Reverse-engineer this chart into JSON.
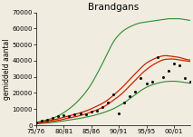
{
  "title": "Brandgans",
  "ylabel": "gemiddeld aantal",
  "xlim": [
    0,
    28
  ],
  "ylim": [
    0,
    70000
  ],
  "x_tick_labels": [
    "75/76",
    "80/81",
    "85/86",
    "90/91",
    "95/95",
    "00/01"
  ],
  "x_tick_positions": [
    0,
    5,
    10,
    15,
    20,
    25
  ],
  "yticks": [
    0,
    10000,
    20000,
    30000,
    40000,
    50000,
    60000,
    70000
  ],
  "scatter_x": [
    0,
    1,
    2,
    3,
    4,
    5,
    6,
    7,
    8,
    9,
    10,
    11,
    12,
    13,
    14,
    15,
    16,
    17,
    18,
    19,
    20,
    21,
    22,
    23,
    24,
    25,
    26,
    27,
    28
  ],
  "scatter_y": [
    1500,
    3000,
    3500,
    4500,
    5500,
    6000,
    5500,
    7000,
    7500,
    6500,
    8500,
    9000,
    11000,
    14000,
    19000,
    7500,
    14000,
    18000,
    21000,
    29000,
    26000,
    27000,
    42000,
    30000,
    34000,
    38000,
    37000,
    29000,
    27000
  ],
  "red_curve1": [
    1200,
    1600,
    2000,
    2500,
    3000,
    3800,
    4500,
    5200,
    6000,
    7000,
    8200,
    9500,
    11000,
    13000,
    15500,
    18000,
    21000,
    24500,
    28000,
    31500,
    34500,
    37000,
    39000,
    40500,
    41000,
    41000,
    40500,
    40000,
    39500
  ],
  "red_curve2": [
    1600,
    2100,
    2700,
    3300,
    4000,
    4900,
    5800,
    6700,
    7700,
    8800,
    10200,
    11800,
    13500,
    15700,
    18500,
    21500,
    24800,
    28500,
    32000,
    35500,
    38500,
    40500,
    42000,
    43000,
    43000,
    42500,
    42000,
    41000,
    40500
  ],
  "green_upper": [
    1800,
    2500,
    3300,
    4400,
    5800,
    7800,
    10200,
    13000,
    16500,
    20500,
    25500,
    31500,
    38000,
    45000,
    51500,
    56000,
    59000,
    61000,
    62500,
    63500,
    64000,
    64500,
    65000,
    65500,
    66000,
    66000,
    66000,
    65500,
    65000
  ],
  "green_lower": [
    800,
    1100,
    1400,
    1800,
    2200,
    2700,
    3200,
    3700,
    4300,
    5000,
    5700,
    6600,
    7600,
    8800,
    10200,
    12000,
    14000,
    16500,
    19000,
    21500,
    23500,
    25000,
    26000,
    26800,
    27200,
    27300,
    27000,
    26500,
    26000
  ],
  "scatter_color": "#111111",
  "red_color": "#cc2200",
  "green_color": "#2d8c2d",
  "background_color": "#f0ece0",
  "title_fontsize": 7.5,
  "label_fontsize": 5.5,
  "tick_fontsize": 5
}
